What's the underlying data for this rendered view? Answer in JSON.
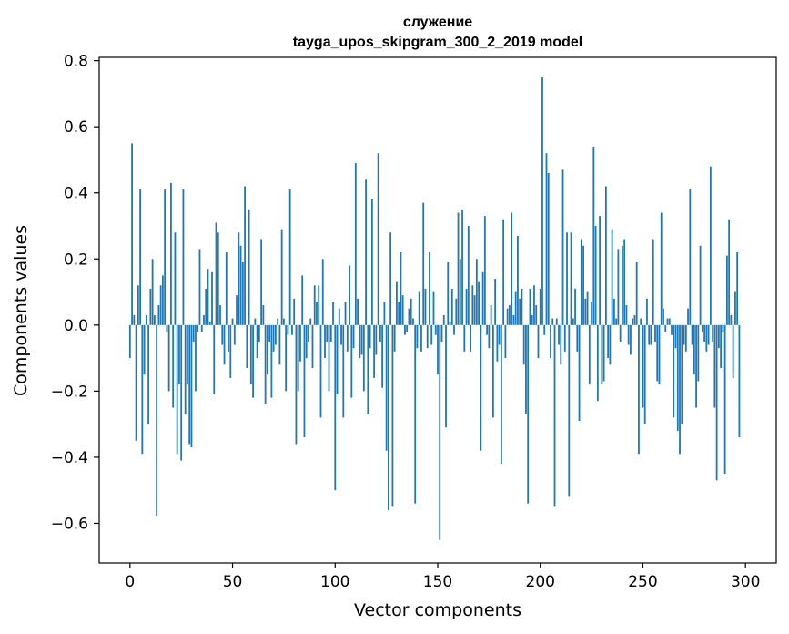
{
  "chart_data": {
    "type": "bar",
    "title_line1": "служение",
    "title_line2": "tayga_upos_skipgram_300_2_2019 model",
    "xlabel": "Vector components",
    "ylabel": "Components values",
    "xlim": [
      -15,
      315
    ],
    "ylim": [
      -0.72,
      0.81
    ],
    "xticks": [
      0,
      50,
      100,
      150,
      200,
      250,
      300
    ],
    "xtick_labels": [
      "0",
      "50",
      "100",
      "150",
      "200",
      "250",
      "300"
    ],
    "yticks": [
      -0.6,
      -0.4,
      -0.2,
      0.0,
      0.2,
      0.4,
      0.6,
      0.8
    ],
    "ytick_labels": [
      "−0.6",
      "−0.4",
      "−0.2",
      "0.0",
      "0.2",
      "0.4",
      "0.6",
      "0.8"
    ],
    "bar_color": "#1f77b4",
    "grid": false,
    "values": [
      -0.1,
      0.55,
      0.03,
      -0.35,
      0.12,
      0.41,
      -0.39,
      -0.15,
      0.03,
      -0.3,
      0.11,
      0.2,
      0.03,
      -0.58,
      0.06,
      0.12,
      0.15,
      0.41,
      -0.02,
      -0.2,
      0.43,
      -0.25,
      0.28,
      -0.39,
      -0.18,
      -0.41,
      0.41,
      -0.27,
      -0.18,
      -0.36,
      -0.37,
      -0.05,
      -0.2,
      -0.02,
      0.23,
      -0.02,
      0.03,
      0.11,
      0.17,
      0.01,
      0.16,
      -0.21,
      0.31,
      0.28,
      0.06,
      -0.06,
      -0.12,
      0.22,
      -0.08,
      -0.16,
      0.02,
      -0.06,
      0.09,
      0.28,
      0.24,
      0.19,
      0.42,
      -0.13,
      0.35,
      -0.18,
      -0.22,
      0.02,
      -0.1,
      -0.05,
      0.26,
      0.06,
      -0.24,
      -0.15,
      -0.05,
      -0.22,
      -0.08,
      -0.06,
      0.02,
      -0.12,
      0.29,
      0.02,
      -0.2,
      -0.03,
      0.41,
      -0.03,
      0.08,
      -0.36,
      -0.2,
      -0.11,
      0.15,
      -0.34,
      -0.1,
      -0.05,
      0.02,
      -0.13,
      0.12,
      0.07,
      0.12,
      -0.28,
      0.2,
      -0.1,
      -0.05,
      -0.2,
      -0.05,
      0.07,
      -0.5,
      -0.21,
      0.05,
      -0.06,
      -0.28,
      0.07,
      -0.08,
      0.18,
      -0.22,
      -0.07,
      0.49,
      0.08,
      -0.1,
      -0.09,
      -0.2,
      0.44,
      -0.27,
      -0.07,
      0.38,
      -0.16,
      -0.09,
      0.52,
      -0.05,
      -0.19,
      0.07,
      -0.38,
      -0.56,
      0.28,
      -0.55,
      -0.08,
      0.13,
      0.07,
      0.22,
      0.09,
      -0.03,
      -0.02,
      0.05,
      0.08,
      0.02,
      -0.54,
      -0.07,
      0.1,
      -0.08,
      0.37,
      0.11,
      -0.07,
      0.22,
      -0.06,
      0.1,
      -0.03,
      -0.15,
      -0.65,
      -0.05,
      0.03,
      -0.31,
      0.19,
      0.01,
      0.11,
      -0.03,
      0.08,
      0.34,
      0.2,
      0.35,
      -0.08,
      0.11,
      0.3,
      -0.08,
      0.12,
      0.09,
      0.2,
      0.13,
      -0.38,
      0.16,
      0.33,
      -0.03,
      -0.07,
      0.06,
      -0.28,
      0.14,
      -0.11,
      -0.06,
      -0.42,
      0.32,
      -0.1,
      0.05,
      0.06,
      0.34,
      0.03,
      0.1,
      0.27,
      0.08,
      0.11,
      -0.12,
      -0.27,
      -0.54,
      0.11,
      0.03,
      0.12,
      0.06,
      -0.1,
      0.11,
      0.75,
      -0.03,
      0.52,
      0.46,
      -0.1,
      0.02,
      -0.55,
      0.02,
      -0.06,
      -0.12,
      0.47,
      -0.08,
      0.28,
      -0.52,
      0.28,
      0.02,
      0.11,
      -0.08,
      -0.29,
      0.26,
      0.24,
      0.08,
      0.1,
      -0.18,
      0.07,
      0.54,
      0.3,
      -0.23,
      0.33,
      -0.18,
      -0.17,
      0.42,
      -0.1,
      -0.12,
      0.29,
      0.08,
      0.02,
      0.23,
      -0.05,
      0.24,
      0.26,
      0.06,
      -0.06,
      -0.09,
      0.02,
      0.03,
      0.19,
      -0.39,
      0.02,
      -0.25,
      -0.3,
      0.08,
      -0.06,
      -0.06,
      0.26,
      -0.05,
      -0.17,
      -0.18,
      0.34,
      0.05,
      -0.02,
      0.02,
      0.02,
      -0.03,
      -0.28,
      -0.07,
      -0.32,
      -0.39,
      -0.3,
      -0.06,
      -0.08,
      0.05,
      0.41,
      -0.06,
      -0.15,
      -0.25,
      -0.17,
      0.24,
      -0.02,
      -0.05,
      -0.08,
      -0.06,
      0.48,
      -0.05,
      -0.25,
      -0.47,
      -0.07,
      -0.13,
      -0.02,
      -0.45,
      0.21,
      0.32,
      0.03,
      -0.16,
      0.1,
      0.22,
      -0.34
    ]
  }
}
